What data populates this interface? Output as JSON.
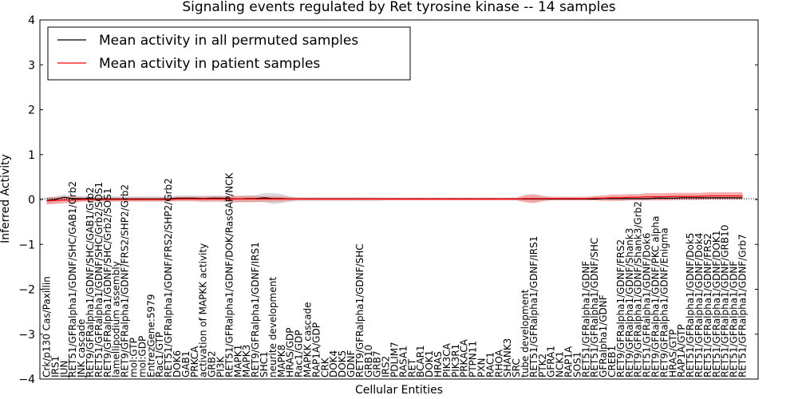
{
  "chart_data": {
    "type": "line",
    "title": "Signaling events regulated by Ret tyrosine kinase -- 14 samples",
    "xlabel": "Cellular Entities",
    "ylabel": "Inferred Activity",
    "ylim": [
      -4,
      4
    ],
    "yticks": [
      "−4",
      "−3",
      "−2",
      "−1",
      "0",
      "1",
      "2",
      "3",
      "4"
    ],
    "grid": false,
    "legend_position": "top-left",
    "colors": {
      "permuted": "#000000",
      "patient": "#ff0000",
      "patient_band": "#f08080",
      "permuted_band": "#bfbfbf"
    },
    "categories": [
      "Crk/p130 Cas/Paxillin",
      "IRS1",
      "JUN",
      "RET51/GFRalpha1/GDNF/SHC/GAB1/Grb2",
      "JNK cascade",
      "RET9/GFRalpha1/GDNF/SHC/GAB1/Grb2",
      "RET51/GFRalpha1/GDNF/SHC/Grb2/SOS1",
      "RET9/GFRalpha1/GDNF/SHC/Grb2/SOS1",
      "lamellipodium assembly",
      "RET9/GFRalpha1/GDNF/FRS2/SHP2/Grb2",
      "mol:GTP",
      "mol:GDP",
      "EntrezGene:5979",
      "Rac1/GTP",
      "RET51/GFRalpha1/GDNF/FRS2/SHP2/Grb2",
      "DOK6",
      "GAB1",
      "PRKCA",
      "activation of MAPKK activity",
      "GRB2",
      "PI3K",
      "RET51/GFRalpha1/GDNF/DOK/RasGAP/NCK",
      "MAPK1",
      "MAPK3",
      "RET9/GFRalpha1/GDNF/IRS1",
      "SHC1",
      "neurite development",
      "MAPK8",
      "HRAS/GDP",
      "Rac1/GDP",
      "MAPKK cascade",
      "RAP1A/GDP",
      "CRK",
      "DOK4",
      "DOK5",
      "GDNF",
      "RET9/GFRalpha1/GDNF/SHC",
      "GRB10",
      "GRB7",
      "IRS2",
      "PDLIM7",
      "RASA1",
      "RET",
      "BCAR1",
      "DOK1",
      "HRAS",
      "PIK3CA",
      "PIK3R1",
      "PRKACA",
      "PTPN11",
      "PXN",
      "RAC1",
      "RHOA",
      "SHANK3",
      "SRC",
      "tube development",
      "RET51/GFRalpha1/GDNF/IRS1",
      "PTK2",
      "GFRA1",
      "NCK1",
      "RAP1A",
      "SOS1",
      "RET51/GFRalpha1/GDNF",
      "RET51/GFRalpha1/GDNF/SHC",
      "GFRalpha1/GDNF",
      "CREB1",
      "RET9/GFRalpha1/GDNF/FRS2",
      "RET9/GFRalpha1/GDNF/Shank3",
      "RET9/GFRalpha1/GDNF/Shank3/Grb2",
      "RET51/GFRalpha1/GDNF/Dok6",
      "RET9/GFRalpha1/GDNF/PKC alpha",
      "RET9/GFRalpha1/GDNF/Enigma",
      "HRAS/GTP",
      "RAP1A/GTP",
      "RET51/GFRalpha1/GDNF/Dok5",
      "RET51/GFRalpha1/GDNF/Dok4",
      "RET51/GFRalpha1/GDNF/FRS2",
      "RET51/GFRalpha1/GDNF/DOK1",
      "RET51/GFRalpha1/GDNF/GRB10",
      "RET51/GFRalpha1/GDNF",
      "RET51/GFRalpha1/GDNF/Grb7"
    ],
    "series": [
      {
        "name": "Mean activity in all permuted samples",
        "values": [
          -0.02,
          0.0,
          0.05,
          0.02,
          0.02,
          0.01,
          0.01,
          0.01,
          0.01,
          0.01,
          0.01,
          0.01,
          0.01,
          0.01,
          0.01,
          0.03,
          0.03,
          0.03,
          0.02,
          0.03,
          0.03,
          0.02,
          0.01,
          0.02,
          0.02,
          0.04,
          0.02,
          0.02,
          0.01,
          0.01,
          0.01,
          0.01,
          0.01,
          0.01,
          0.01,
          0.01,
          0.01,
          0.01,
          0.01,
          0.01,
          0.01,
          0.01,
          0.01,
          0.01,
          0.01,
          0.01,
          0.01,
          0.01,
          0.01,
          0.01,
          0.01,
          0.01,
          0.01,
          0.01,
          0.01,
          0.01,
          0.01,
          0.01,
          0.01,
          0.01,
          0.01,
          0.01,
          0.01,
          0.01,
          0.02,
          0.02,
          0.02,
          0.02,
          0.02,
          0.02,
          0.03,
          0.03,
          0.03,
          0.04,
          0.04,
          0.04,
          0.04,
          0.04,
          0.04,
          0.04,
          0.04
        ],
        "band": [
          0.06,
          0.06,
          0.06,
          0.06,
          0.06,
          0.06,
          0.06,
          0.06,
          0.06,
          0.06,
          0.06,
          0.06,
          0.06,
          0.06,
          0.06,
          0.06,
          0.06,
          0.06,
          0.06,
          0.06,
          0.06,
          0.07,
          0.07,
          0.07,
          0.07,
          0.1,
          0.12,
          0.1,
          0.06,
          0.04,
          0.04,
          0.04,
          0.04,
          0.04,
          0.04,
          0.04,
          0.04,
          0.04,
          0.04,
          0.03,
          0.03,
          0.03,
          0.03,
          0.03,
          0.03,
          0.03,
          0.03,
          0.03,
          0.03,
          0.03,
          0.03,
          0.03,
          0.03,
          0.03,
          0.03,
          0.04,
          0.05,
          0.04,
          0.03,
          0.03,
          0.03,
          0.03,
          0.03,
          0.03,
          0.03,
          0.04,
          0.04,
          0.04,
          0.04,
          0.04,
          0.04,
          0.04,
          0.04,
          0.04,
          0.04,
          0.04,
          0.04,
          0.04,
          0.04,
          0.04,
          0.04
        ]
      },
      {
        "name": "Mean activity in patient samples",
        "values": [
          -0.03,
          -0.02,
          -0.01,
          -0.01,
          0.0,
          0.0,
          0.0,
          0.0,
          0.0,
          0.0,
          0.0,
          0.0,
          0.0,
          0.0,
          0.0,
          0.01,
          0.01,
          0.01,
          0.01,
          0.01,
          0.01,
          0.01,
          0.01,
          0.01,
          0.01,
          0.01,
          0.01,
          0.01,
          0.01,
          0.01,
          0.01,
          0.01,
          0.01,
          0.01,
          0.01,
          0.01,
          0.01,
          0.01,
          0.01,
          0.01,
          0.01,
          0.01,
          0.01,
          0.01,
          0.01,
          0.01,
          0.01,
          0.01,
          0.01,
          0.01,
          0.01,
          0.01,
          0.01,
          0.01,
          0.01,
          0.02,
          0.02,
          0.02,
          0.02,
          0.02,
          0.02,
          0.02,
          0.02,
          0.03,
          0.03,
          0.04,
          0.04,
          0.05,
          0.05,
          0.06,
          0.06,
          0.06,
          0.07,
          0.07,
          0.07,
          0.07,
          0.08,
          0.08,
          0.08,
          0.08,
          0.08
        ],
        "band": [
          0.08,
          0.08,
          0.07,
          0.07,
          0.05,
          0.04,
          0.04,
          0.04,
          0.04,
          0.04,
          0.04,
          0.04,
          0.04,
          0.04,
          0.04,
          0.05,
          0.05,
          0.05,
          0.06,
          0.06,
          0.06,
          0.07,
          0.07,
          0.07,
          0.07,
          0.06,
          0.06,
          0.06,
          0.04,
          0.03,
          0.03,
          0.03,
          0.03,
          0.03,
          0.03,
          0.03,
          0.03,
          0.03,
          0.03,
          0.03,
          0.03,
          0.03,
          0.03,
          0.03,
          0.03,
          0.03,
          0.03,
          0.03,
          0.03,
          0.03,
          0.03,
          0.03,
          0.03,
          0.03,
          0.03,
          0.08,
          0.1,
          0.06,
          0.04,
          0.04,
          0.04,
          0.04,
          0.04,
          0.05,
          0.06,
          0.07,
          0.07,
          0.07,
          0.07,
          0.08,
          0.08,
          0.08,
          0.08,
          0.08,
          0.08,
          0.08,
          0.08,
          0.08,
          0.08,
          0.08,
          0.08
        ]
      }
    ]
  }
}
